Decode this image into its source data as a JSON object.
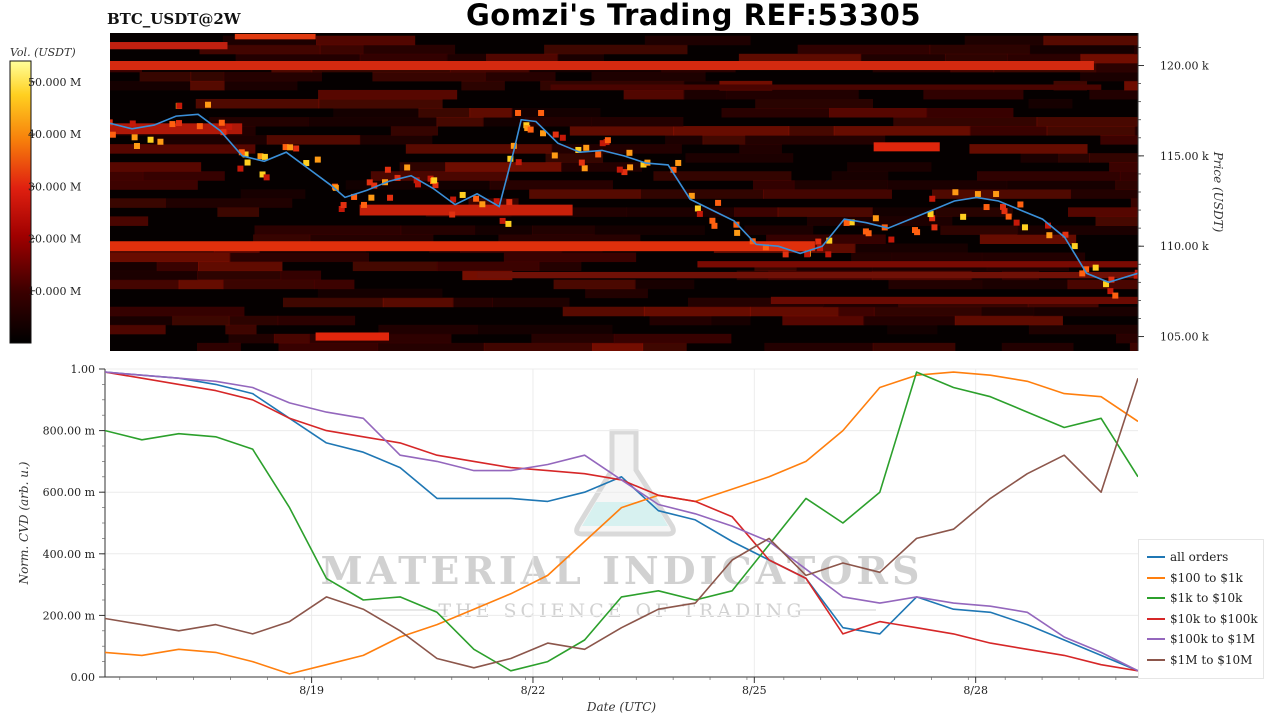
{
  "header": {
    "symbol": "BTC_USDT@2W",
    "title": "Gomzi's Trading REF:53305"
  },
  "heatmap": {
    "colorbar_label": "Vol. (USDT)",
    "colorbar_ticks": [
      "10.000 M",
      "20.000 M",
      "30.000 M",
      "40.000 M",
      "50.000 M"
    ],
    "colorbar_values": [
      10,
      20,
      30,
      40,
      50
    ],
    "colorbar_max": 54,
    "price_axis_label": "Price (USDT)",
    "price_ticks": [
      "105.00 k",
      "110.00 k",
      "115.00 k",
      "120.00 k"
    ],
    "price_values": [
      105,
      110,
      115,
      120
    ],
    "price_range": [
      104.2,
      121.8
    ]
  },
  "watermark": {
    "line1": "MATERIAL INDICATORS",
    "line2": "THE SCIENCE OF TRADING"
  },
  "chart_data": [
    {
      "type": "heatmap",
      "title": "BTC_USDT@2W",
      "xlabel": "",
      "ylabel": "Price (USDT)",
      "ylim": [
        104.2,
        121.8
      ],
      "colorbar": "Vol. (USDT)",
      "price_line": {
        "x": [
          0,
          0.3,
          0.6,
          0.9,
          1.2,
          1.5,
          1.8,
          2.1,
          2.4,
          2.7,
          3.0,
          3.2,
          3.5,
          3.8,
          4.1,
          4.4,
          4.7,
          5.0,
          5.3,
          5.5,
          5.6,
          5.8,
          6.1,
          6.4,
          6.7,
          7.0,
          7.3,
          7.6,
          7.9,
          8.2,
          8.5,
          8.8,
          9.1,
          9.4,
          9.7,
          10.0,
          10.3,
          10.6,
          10.9,
          11.2,
          11.5,
          11.8,
          12.1,
          12.4,
          12.7,
          13.0,
          13.3,
          13.6,
          14.0
        ],
        "y": [
          116.8,
          116.5,
          116.7,
          117.2,
          117.3,
          116.4,
          115.0,
          114.7,
          115.2,
          114.3,
          113.4,
          112.7,
          113.1,
          113.6,
          113.9,
          113.2,
          112.3,
          112.9,
          112.2,
          115.3,
          117.0,
          116.9,
          115.7,
          115.2,
          115.3,
          115.0,
          114.6,
          114.5,
          112.6,
          112.0,
          111.4,
          110.1,
          110.0,
          109.6,
          110.0,
          111.5,
          111.3,
          111.0,
          111.5,
          112.0,
          112.5,
          112.7,
          112.5,
          112.0,
          111.5,
          110.5,
          108.5,
          108.0,
          108.5
        ]
      }
    },
    {
      "type": "line",
      "title": "",
      "xlabel": "Date (UTC)",
      "ylabel": "Norm. CVD (arb. u.)",
      "ylim": [
        0,
        1
      ],
      "x_tick_labels": [
        "8/19",
        "8/22",
        "8/25",
        "8/28"
      ],
      "x_tick_positions": [
        2.8,
        5.8,
        8.8,
        11.8
      ],
      "y_tick_labels": [
        "0.00",
        "200.00 m",
        "400.00 m",
        "600.00 m",
        "800.00 m",
        "1.00"
      ],
      "y_tick_values": [
        0,
        0.2,
        0.4,
        0.6,
        0.8,
        1.0
      ],
      "x": [
        0,
        0.5,
        1.0,
        1.5,
        2.0,
        2.5,
        3.0,
        3.5,
        4.0,
        4.5,
        5.0,
        5.5,
        6.0,
        6.5,
        7.0,
        7.5,
        8.0,
        8.5,
        9.0,
        9.5,
        10.0,
        10.5,
        11.0,
        11.5,
        12.0,
        12.5,
        13.0,
        13.5,
        14.0
      ],
      "series": [
        {
          "name": "all orders",
          "color": "#1f77b4",
          "values": [
            0.99,
            0.98,
            0.97,
            0.95,
            0.92,
            0.84,
            0.76,
            0.73,
            0.68,
            0.58,
            0.58,
            0.58,
            0.57,
            0.6,
            0.65,
            0.54,
            0.51,
            0.44,
            0.38,
            0.32,
            0.16,
            0.14,
            0.26,
            0.22,
            0.21,
            0.17,
            0.12,
            0.07,
            0.02
          ]
        },
        {
          "name": "$100 to $1k",
          "color": "#ff7f0e",
          "values": [
            0.08,
            0.07,
            0.09,
            0.08,
            0.05,
            0.01,
            0.04,
            0.07,
            0.13,
            0.17,
            0.22,
            0.27,
            0.33,
            0.44,
            0.55,
            0.59,
            0.57,
            0.61,
            0.65,
            0.7,
            0.8,
            0.94,
            0.98,
            0.99,
            0.98,
            0.96,
            0.92,
            0.91,
            0.83
          ]
        },
        {
          "name": "$1k to $10k",
          "color": "#2ca02c",
          "values": [
            0.8,
            0.77,
            0.79,
            0.78,
            0.74,
            0.55,
            0.32,
            0.25,
            0.26,
            0.21,
            0.09,
            0.02,
            0.05,
            0.12,
            0.26,
            0.28,
            0.25,
            0.28,
            0.43,
            0.58,
            0.5,
            0.6,
            0.99,
            0.94,
            0.91,
            0.86,
            0.81,
            0.84,
            0.65
          ]
        },
        {
          "name": "$10k to $100k",
          "color": "#d62728",
          "values": [
            0.99,
            0.97,
            0.95,
            0.93,
            0.9,
            0.84,
            0.8,
            0.78,
            0.76,
            0.72,
            0.7,
            0.68,
            0.67,
            0.66,
            0.64,
            0.59,
            0.57,
            0.52,
            0.38,
            0.32,
            0.14,
            0.18,
            0.16,
            0.14,
            0.11,
            0.09,
            0.07,
            0.04,
            0.02
          ]
        },
        {
          "name": "$100k to $1M",
          "color": "#9467bd",
          "values": [
            0.99,
            0.98,
            0.97,
            0.96,
            0.94,
            0.89,
            0.86,
            0.84,
            0.72,
            0.7,
            0.67,
            0.67,
            0.69,
            0.72,
            0.64,
            0.56,
            0.53,
            0.49,
            0.44,
            0.35,
            0.26,
            0.24,
            0.26,
            0.24,
            0.23,
            0.21,
            0.13,
            0.08,
            0.02
          ]
        },
        {
          "name": "$1M to $10M",
          "color": "#8c564b",
          "values": [
            0.19,
            0.17,
            0.15,
            0.17,
            0.14,
            0.18,
            0.26,
            0.22,
            0.15,
            0.06,
            0.03,
            0.06,
            0.11,
            0.09,
            0.16,
            0.22,
            0.24,
            0.38,
            0.45,
            0.33,
            0.37,
            0.34,
            0.45,
            0.48,
            0.58,
            0.66,
            0.72,
            0.6,
            0.97
          ]
        }
      ]
    }
  ]
}
